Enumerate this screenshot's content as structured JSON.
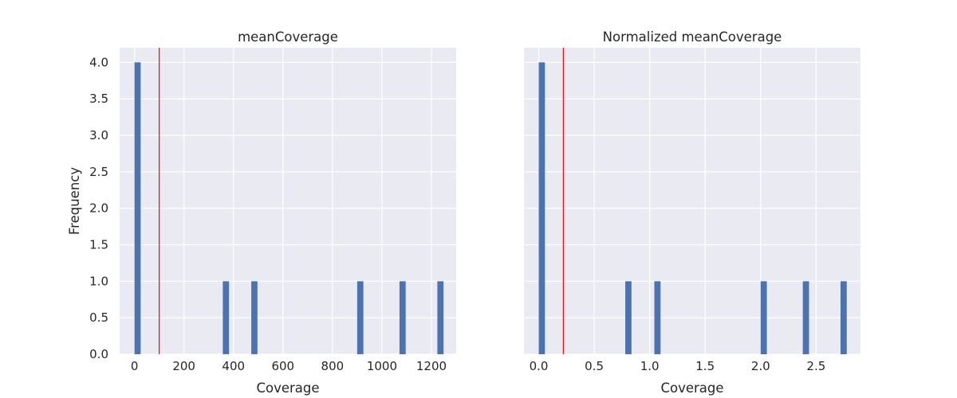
{
  "chart_data": [
    {
      "type": "bar",
      "title": "meanCoverage",
      "xlabel": "Coverage",
      "ylabel": "Frequency",
      "xlim": [
        -60,
        1300
      ],
      "ylim": [
        0,
        4.2
      ],
      "xticks": [
        0,
        200,
        400,
        600,
        800,
        1000,
        1200
      ],
      "xtick_labels": [
        "0",
        "200",
        "400",
        "600",
        "800",
        "1000",
        "1200"
      ],
      "yticks": [
        0,
        0.5,
        1,
        1.5,
        2,
        2.5,
        3,
        3.5,
        4
      ],
      "ytick_labels": [
        "0.0",
        "0.5",
        "1.0",
        "1.5",
        "2.0",
        "2.5",
        "3.0",
        "3.5",
        "4.0"
      ],
      "bins": [
        {
          "start": 0,
          "end": 25,
          "count": 4
        },
        {
          "start": 357,
          "end": 382,
          "count": 1
        },
        {
          "start": 472,
          "end": 497,
          "count": 1
        },
        {
          "start": 900,
          "end": 925,
          "count": 1
        },
        {
          "start": 1071,
          "end": 1096,
          "count": 1
        },
        {
          "start": 1224,
          "end": 1249,
          "count": 1
        }
      ],
      "vline": {
        "x": 100,
        "color": "#e31a1c"
      },
      "grid": true,
      "bar_color": "#4c72b0",
      "background": "#eaeaf2"
    },
    {
      "type": "bar",
      "title": "Normalized meanCoverage",
      "xlabel": "Coverage",
      "ylabel": "",
      "xlim": [
        -0.133,
        2.9
      ],
      "ylim": [
        0,
        4.2
      ],
      "xticks": [
        0,
        0.5,
        1,
        1.5,
        2,
        2.5
      ],
      "xtick_labels": [
        "0.0",
        "0.5",
        "1.0",
        "1.5",
        "2.0",
        "2.5"
      ],
      "yticks": [
        0,
        0.5,
        1,
        1.5,
        2,
        2.5,
        3,
        3.5,
        4
      ],
      "ytick_labels": [],
      "bins": [
        {
          "start": 0,
          "end": 0.056,
          "count": 4
        },
        {
          "start": 0.78,
          "end": 0.836,
          "count": 1
        },
        {
          "start": 1.042,
          "end": 1.098,
          "count": 1
        },
        {
          "start": 2.0,
          "end": 2.056,
          "count": 1
        },
        {
          "start": 2.38,
          "end": 2.436,
          "count": 1
        },
        {
          "start": 2.72,
          "end": 2.776,
          "count": 1
        }
      ],
      "vline": {
        "x": 0.222,
        "color": "#e31a1c"
      },
      "grid": true,
      "bar_color": "#4c72b0",
      "background": "#eaeaf2"
    }
  ]
}
